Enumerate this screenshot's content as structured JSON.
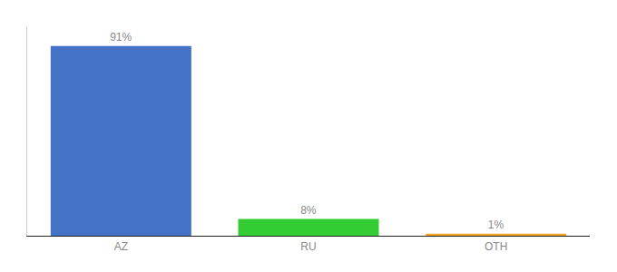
{
  "chart_data": {
    "type": "bar",
    "categories": [
      "AZ",
      "RU",
      "OTH"
    ],
    "values": [
      91,
      8,
      1
    ],
    "value_labels": [
      "91%",
      "8%",
      "1%"
    ],
    "colors": [
      "#4472c4",
      "#33cc33",
      "#f5a623"
    ],
    "ylim": [
      0,
      100
    ],
    "grid": false,
    "data_labels": true,
    "tick_labels": "x"
  }
}
